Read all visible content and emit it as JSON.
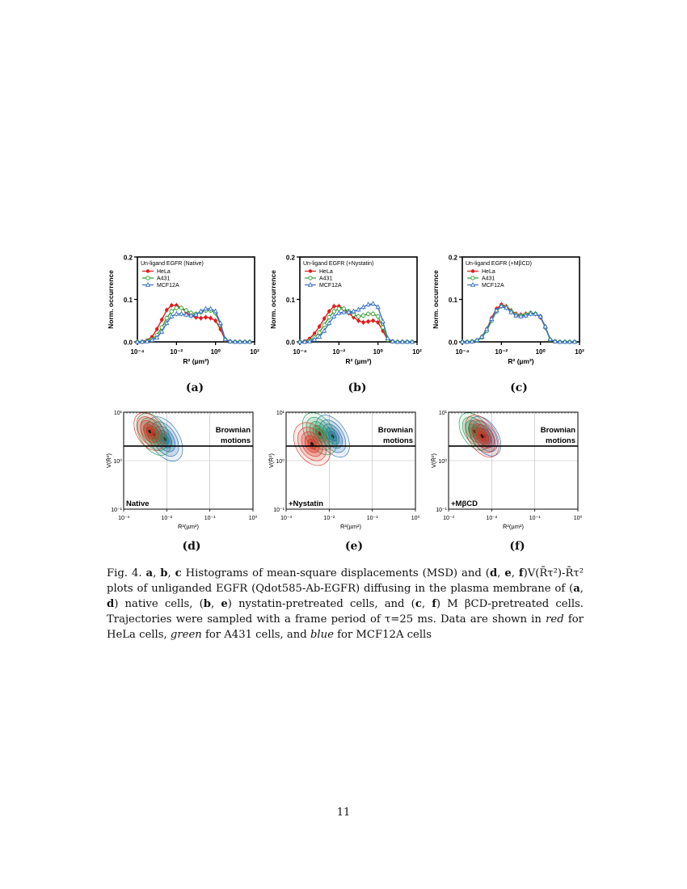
{
  "figure": {
    "histograms": [
      {
        "label": "(a)",
        "chart_data": {
          "type": "line",
          "title": "Un-ligand EGFR (Native)",
          "xlabel": "R² (µm²)",
          "ylabel": "Norm. occurrence",
          "xscale": "log",
          "xlim": [
            0.0001,
            100
          ],
          "ylim": [
            0,
            0.2
          ],
          "x_ticks": [
            "10⁻⁴",
            "10⁻²",
            "10⁰",
            "10²"
          ],
          "y_ticks": [
            "0.0",
            "0.1",
            "0.2"
          ],
          "legend_position": "top-left",
          "x": [
            0.0001,
            0.000178,
            0.000316,
            0.000562,
            0.001,
            0.00178,
            0.00316,
            0.00562,
            0.01,
            0.0178,
            0.0316,
            0.0562,
            0.1,
            0.178,
            0.316,
            0.562,
            1,
            1.78,
            3.16,
            5.62,
            10,
            17.8,
            31.6,
            56.2
          ],
          "series": [
            {
              "name": "HeLa",
              "color": "#e41a1c",
              "marker": "filled-circle",
              "values": [
                0.0,
                0.001,
                0.004,
                0.012,
                0.03,
                0.052,
                0.075,
                0.086,
                0.086,
                0.08,
                0.07,
                0.062,
                0.058,
                0.056,
                0.058,
                0.056,
                0.05,
                0.03,
                0.004,
                0.001,
                0.0,
                0.0,
                0.0,
                0.0
              ]
            },
            {
              "name": "A431",
              "color": "#2ca02c",
              "marker": "open-circle",
              "values": [
                0.0,
                0.0,
                0.002,
                0.006,
                0.016,
                0.034,
                0.056,
                0.072,
                0.08,
                0.08,
                0.074,
                0.068,
                0.066,
                0.07,
                0.074,
                0.074,
                0.068,
                0.04,
                0.006,
                0.001,
                0.0,
                0.0,
                0.0,
                0.0
              ]
            },
            {
              "name": "MCF12A",
              "color": "#3a6fc4",
              "marker": "open-triangle",
              "values": [
                0.0,
                0.0,
                0.001,
                0.004,
                0.01,
                0.024,
                0.044,
                0.06,
                0.066,
                0.066,
                0.064,
                0.062,
                0.064,
                0.072,
                0.078,
                0.078,
                0.072,
                0.044,
                0.006,
                0.001,
                0.0,
                0.0,
                0.0,
                0.0
              ]
            }
          ]
        }
      },
      {
        "label": "(b)",
        "chart_data": {
          "type": "line",
          "title": "Un-ligand EGFR (+Nystatin)",
          "xlabel": "R² (µm²)",
          "ylabel": "Norm. occurrence",
          "xscale": "log",
          "xlim": [
            0.0001,
            100
          ],
          "ylim": [
            0,
            0.2
          ],
          "x_ticks": [
            "10⁻⁴",
            "10⁻²",
            "10⁰",
            "10²"
          ],
          "y_ticks": [
            "0.0",
            "0.1",
            "0.2"
          ],
          "legend_position": "top-left",
          "x": [
            0.0001,
            0.000178,
            0.000316,
            0.000562,
            0.001,
            0.00178,
            0.00316,
            0.00562,
            0.01,
            0.0178,
            0.0316,
            0.0562,
            0.1,
            0.178,
            0.316,
            0.562,
            1,
            1.78,
            3.16,
            5.62,
            10,
            17.8,
            31.6,
            56.2
          ],
          "series": [
            {
              "name": "HeLa",
              "color": "#e41a1c",
              "marker": "filled-circle",
              "values": [
                0.0,
                0.002,
                0.008,
                0.02,
                0.036,
                0.055,
                0.072,
                0.084,
                0.084,
                0.078,
                0.068,
                0.058,
                0.05,
                0.046,
                0.048,
                0.05,
                0.046,
                0.026,
                0.004,
                0.001,
                0.0,
                0.0,
                0.0,
                0.0
              ]
            },
            {
              "name": "A431",
              "color": "#2ca02c",
              "marker": "open-circle",
              "values": [
                0.0,
                0.0,
                0.003,
                0.01,
                0.022,
                0.04,
                0.058,
                0.072,
                0.078,
                0.078,
                0.072,
                0.064,
                0.06,
                0.062,
                0.066,
                0.066,
                0.06,
                0.034,
                0.005,
                0.001,
                0.0,
                0.0,
                0.0,
                0.0
              ]
            },
            {
              "name": "MCF12A",
              "color": "#3a6fc4",
              "marker": "open-triangle",
              "values": [
                0.0,
                0.0,
                0.001,
                0.005,
                0.012,
                0.026,
                0.044,
                0.06,
                0.068,
                0.07,
                0.07,
                0.072,
                0.076,
                0.082,
                0.088,
                0.09,
                0.082,
                0.048,
                0.008,
                0.001,
                0.0,
                0.0,
                0.0,
                0.0
              ]
            }
          ]
        }
      },
      {
        "label": "(c)",
        "chart_data": {
          "type": "line",
          "title": "Un-ligand EGFR (+MβCD)",
          "xlabel": "R² (µm²)",
          "ylabel": "Norm. occurrence",
          "xscale": "log",
          "xlim": [
            0.0001,
            100
          ],
          "ylim": [
            0,
            0.2
          ],
          "x_ticks": [
            "10⁻⁴",
            "10⁻²",
            "10⁰",
            "10²"
          ],
          "y_ticks": [
            "0.0",
            "0.1",
            "0.2"
          ],
          "legend_position": "top-left",
          "x": [
            0.0001,
            0.000178,
            0.000316,
            0.000562,
            0.001,
            0.00178,
            0.00316,
            0.00562,
            0.01,
            0.0178,
            0.0316,
            0.0562,
            0.1,
            0.178,
            0.316,
            0.562,
            1,
            1.78,
            3.16,
            5.62,
            10,
            17.8,
            31.6,
            56.2
          ],
          "series": [
            {
              "name": "HeLa",
              "color": "#e41a1c",
              "marker": "filled-circle",
              "values": [
                0.0,
                0.0,
                0.001,
                0.004,
                0.012,
                0.03,
                0.056,
                0.078,
                0.088,
                0.084,
                0.074,
                0.066,
                0.064,
                0.066,
                0.068,
                0.066,
                0.058,
                0.034,
                0.005,
                0.001,
                0.0,
                0.0,
                0.0,
                0.0
              ]
            },
            {
              "name": "A431",
              "color": "#2ca02c",
              "marker": "open-circle",
              "values": [
                0.0,
                0.0,
                0.001,
                0.003,
                0.01,
                0.026,
                0.05,
                0.072,
                0.084,
                0.082,
                0.072,
                0.064,
                0.062,
                0.064,
                0.068,
                0.066,
                0.06,
                0.034,
                0.005,
                0.001,
                0.0,
                0.0,
                0.0,
                0.0
              ]
            },
            {
              "name": "MCF12A",
              "color": "#3a6fc4",
              "marker": "open-triangle",
              "values": [
                0.0,
                0.0,
                0.001,
                0.004,
                0.012,
                0.03,
                0.054,
                0.074,
                0.084,
                0.08,
                0.07,
                0.062,
                0.06,
                0.062,
                0.066,
                0.066,
                0.06,
                0.036,
                0.006,
                0.001,
                0.0,
                0.0,
                0.0,
                0.0
              ]
            }
          ]
        }
      }
    ],
    "density_plots": [
      {
        "label": "(d)",
        "condition": "Native",
        "region_label": [
          "Brownian",
          "motions"
        ],
        "chart_data": {
          "type": "heatmap",
          "xlabel": "R̄²(µm²)",
          "ylabel": "V(R̄²)",
          "xscale": "log",
          "yscale": "log",
          "xlim": [
            0.001,
            1
          ],
          "ylim": [
            0.1,
            10
          ],
          "x_ticks": [
            "10⁻³",
            "10⁻²",
            "10⁻¹",
            "10⁰"
          ],
          "y_ticks": [
            "10⁻¹",
            "10⁰",
            "10¹"
          ],
          "threshold_y": 2,
          "series": [
            {
              "name": "HeLa",
              "color": "#d7301f",
              "center": [
                0.004,
                4.0
              ],
              "spread": [
                0.32,
                0.33
              ]
            },
            {
              "name": "A431",
              "color": "#1a9850",
              "center": [
                0.005,
                3.5
              ],
              "spread": [
                0.36,
                0.35
              ]
            },
            {
              "name": "MCF12A",
              "color": "#2166ac",
              "center": [
                0.009,
                2.8
              ],
              "spread": [
                0.38,
                0.36
              ]
            }
          ]
        }
      },
      {
        "label": "(e)",
        "condition": "+Nystatin",
        "region_label": [
          "Brownian",
          "motions"
        ],
        "chart_data": {
          "type": "heatmap",
          "xlabel": "R̄²(µm²)",
          "ylabel": "V(R̄²)",
          "xscale": "log",
          "yscale": "log",
          "xlim": [
            0.001,
            1
          ],
          "ylim": [
            0.1,
            10
          ],
          "x_ticks": [
            "10⁻³",
            "10⁻²",
            "10⁻¹",
            "10⁰"
          ],
          "y_ticks": [
            "10⁻¹",
            "10⁰",
            "10¹"
          ],
          "threshold_y": 2,
          "series": [
            {
              "name": "HeLa",
              "color": "#d7301f",
              "center": [
                0.004,
                2.2
              ],
              "spread": [
                0.36,
                0.4
              ]
            },
            {
              "name": "A431",
              "color": "#1a9850",
              "center": [
                0.006,
                3.6
              ],
              "spread": [
                0.36,
                0.35
              ]
            },
            {
              "name": "MCF12A",
              "color": "#2166ac",
              "center": [
                0.012,
                3.2
              ],
              "spread": [
                0.36,
                0.34
              ]
            }
          ]
        }
      },
      {
        "label": "(f)",
        "condition": "+MβCD",
        "region_label": [
          "Brownian",
          "motions"
        ],
        "chart_data": {
          "type": "heatmap",
          "xlabel": "R̄²(µm²)",
          "ylabel": "V(R̄²)",
          "xscale": "log",
          "yscale": "log",
          "xlim": [
            0.001,
            1
          ],
          "ylim": [
            0.1,
            10
          ],
          "x_ticks": [
            "10⁻³",
            "10⁻²",
            "10⁻¹",
            "10⁰"
          ],
          "y_ticks": [
            "10⁻¹",
            "10⁰",
            "10¹"
          ],
          "threshold_y": 2,
          "series": [
            {
              "name": "HeLa",
              "color": "#d7301f",
              "center": [
                0.006,
                3.2
              ],
              "spread": [
                0.36,
                0.34
              ]
            },
            {
              "name": "A431",
              "color": "#1a9850",
              "center": [
                0.004,
                4.0
              ],
              "spread": [
                0.32,
                0.32
              ]
            },
            {
              "name": "MCF12A",
              "color": "#2166ac",
              "center": [
                0.007,
                3.2
              ],
              "spread": [
                0.34,
                0.32
              ]
            }
          ]
        }
      }
    ]
  },
  "caption": {
    "fig": "Fig. 4.",
    "a": "a",
    "b": "b",
    "c": "c",
    "part1": " Histograms of mean-square displacements (MSD) and (",
    "d": "d",
    "e": "e",
    "f": "f",
    "part2": ")V(R̄τ²)-R̄τ² plots of unliganded EGFR (Qdot585-Ab-EGFR) diffusing in the plasma membrane of (",
    "part3": ") native cells, (",
    "part4": ") nystatin-pretreated cells, and (",
    "part5": ") M βCD-pretreated cells. Trajectories were sampled with a frame period of τ=25 ms. Data are shown in ",
    "red": "red",
    "part6": " for HeLa cells, ",
    "green": "green",
    "part7": " for A431 cells, and ",
    "blue": "blue",
    "part8": " for MCF12A cells"
  },
  "page_number": "11"
}
